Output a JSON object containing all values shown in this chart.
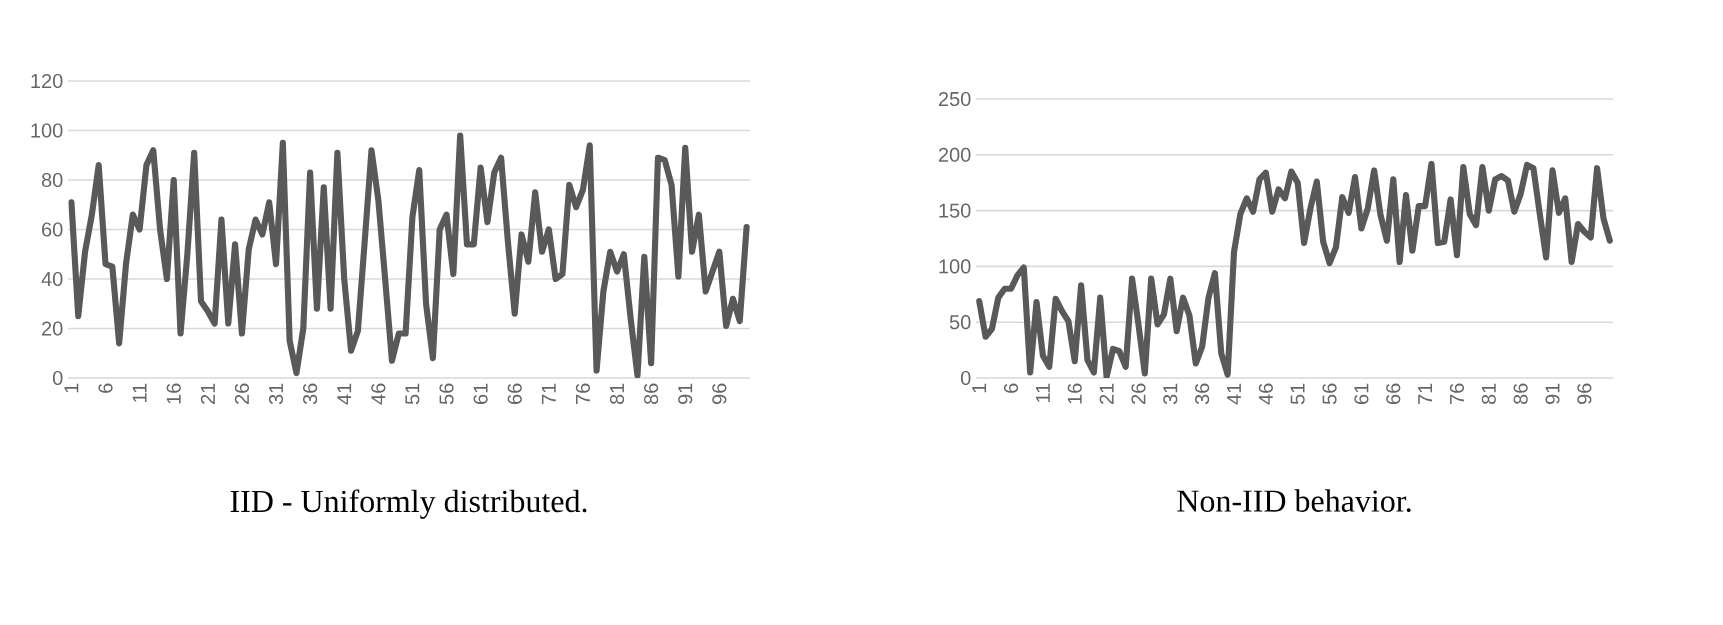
{
  "chart_data": [
    {
      "type": "line",
      "title": "IID - Uniformly distributed.",
      "categories": [
        "1",
        null,
        null,
        null,
        null,
        "6",
        null,
        null,
        null,
        null,
        "11",
        null,
        null,
        null,
        null,
        "16",
        null,
        null,
        null,
        null,
        "21",
        null,
        null,
        null,
        null,
        "26",
        null,
        null,
        null,
        null,
        "31",
        null,
        null,
        null,
        null,
        "36",
        null,
        null,
        null,
        null,
        "41",
        null,
        null,
        null,
        null,
        "46",
        null,
        null,
        null,
        null,
        "51",
        null,
        null,
        null,
        null,
        "56",
        null,
        null,
        null,
        null,
        "61",
        null,
        null,
        null,
        null,
        "66",
        null,
        null,
        null,
        null,
        "71",
        null,
        null,
        null,
        null,
        "76",
        null,
        null,
        null,
        null,
        "81",
        null,
        null,
        null,
        null,
        "86",
        null,
        null,
        null,
        null,
        "91",
        null,
        null,
        null,
        null,
        "96",
        null,
        null,
        null,
        null
      ],
      "values": [
        71,
        25,
        51,
        66,
        86,
        46,
        45,
        14,
        46,
        66,
        60,
        86,
        92,
        60,
        40,
        80,
        18,
        50,
        91,
        31,
        27,
        22,
        64,
        22,
        54,
        18,
        52,
        64,
        58,
        71,
        46,
        95,
        15,
        2,
        20,
        83,
        28,
        77,
        28,
        91,
        40,
        11,
        19,
        55,
        92,
        72,
        40,
        7,
        18,
        18,
        65,
        84,
        30,
        8,
        60,
        66,
        42,
        98,
        54,
        54,
        85,
        63,
        83,
        89,
        55,
        26,
        58,
        47,
        75,
        51,
        60,
        40,
        42,
        78,
        69,
        76,
        94,
        3,
        35,
        51,
        43,
        50,
        24,
        1,
        49,
        6,
        89,
        88,
        78,
        41,
        93,
        51,
        66,
        35,
        43,
        51,
        21,
        32,
        23,
        61
      ],
      "color": "#595959",
      "ylim": [
        0,
        120
      ],
      "yticks": [
        0,
        20,
        40,
        60,
        80,
        100,
        120
      ],
      "grid": "y",
      "marker": "none",
      "line_style": "solid"
    },
    {
      "type": "line",
      "title": "Non-IID behavior.",
      "categories": [
        "1",
        null,
        null,
        null,
        null,
        "6",
        null,
        null,
        null,
        null,
        "11",
        null,
        null,
        null,
        null,
        "16",
        null,
        null,
        null,
        null,
        "21",
        null,
        null,
        null,
        null,
        "26",
        null,
        null,
        null,
        null,
        "31",
        null,
        null,
        null,
        null,
        "36",
        null,
        null,
        null,
        null,
        "41",
        null,
        null,
        null,
        null,
        "46",
        null,
        null,
        null,
        null,
        "51",
        null,
        null,
        null,
        null,
        "56",
        null,
        null,
        null,
        null,
        "61",
        null,
        null,
        null,
        null,
        "66",
        null,
        null,
        null,
        null,
        "71",
        null,
        null,
        null,
        null,
        "76",
        null,
        null,
        null,
        null,
        "81",
        null,
        null,
        null,
        null,
        "86",
        null,
        null,
        null,
        null,
        "91",
        null,
        null,
        null,
        null,
        "96",
        null,
        null,
        null,
        null
      ],
      "values": [
        69,
        37,
        44,
        72,
        80,
        80,
        92,
        99,
        5,
        68,
        20,
        10,
        71,
        60,
        51,
        15,
        83,
        16,
        5,
        72,
        1,
        26,
        24,
        10,
        89,
        48,
        4,
        89,
        48,
        57,
        89,
        42,
        72,
        56,
        13,
        28,
        72,
        94,
        22,
        3,
        113,
        147,
        161,
        149,
        178,
        184,
        149,
        169,
        161,
        185,
        175,
        121,
        152,
        176,
        122,
        103,
        117,
        162,
        148,
        180,
        134,
        152,
        186,
        146,
        123,
        178,
        104,
        164,
        114,
        154,
        154,
        192,
        121,
        122,
        160,
        110,
        189,
        147,
        137,
        189,
        150,
        178,
        181,
        177,
        149,
        165,
        191,
        188,
        147,
        108,
        186,
        148,
        161,
        104,
        138,
        131,
        126,
        188,
        143,
        123
      ],
      "color": "#595959",
      "ylim": [
        0,
        250
      ],
      "yticks": [
        0,
        50,
        100,
        150,
        200,
        250
      ],
      "grid": "y",
      "marker": "none",
      "line_style": "solid"
    }
  ]
}
